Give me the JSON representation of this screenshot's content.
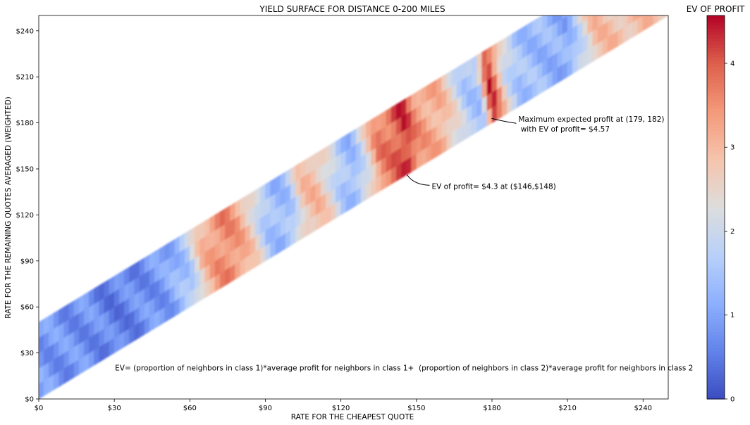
{
  "chart_data": {
    "type": "heatmap",
    "title": "YIELD SURFACE FOR DISTANCE 0-200 MILES",
    "xlabel": "RATE FOR THE CHEAPEST QUOTE",
    "ylabel": "RATE FOR THE REMAINING QUOTES AVERAGED (WEIGHTED)",
    "xlim": [
      0,
      250
    ],
    "ylim": [
      0,
      250
    ],
    "x_ticks": [
      0,
      30,
      60,
      90,
      120,
      150,
      180,
      210,
      240
    ],
    "y_ticks": [
      0,
      30,
      60,
      90,
      120,
      150,
      180,
      210,
      240
    ],
    "x_tick_labels": [
      "$0",
      "$30",
      "$60",
      "$90",
      "$120",
      "$150",
      "$180",
      "$210",
      "$240"
    ],
    "y_tick_labels": [
      "$0",
      "$30",
      "$60",
      "$90",
      "$120",
      "$150",
      "$180",
      "$210",
      "$240"
    ],
    "grid": false,
    "colormap": "coolwarm",
    "colorbar": {
      "title": "EV OF PROFIT",
      "range": [
        0,
        4.57
      ],
      "ticks": [
        0,
        1,
        2,
        3,
        4
      ],
      "tick_labels": [
        "0",
        "1",
        "2",
        "3",
        "4"
      ]
    },
    "band": {
      "description_shape": "diagonal band where y ranges from x to x+50",
      "y_min_offset": 0,
      "y_max_offset": 50
    },
    "surface_profile": {
      "x": [
        0,
        10,
        20,
        30,
        40,
        50,
        60,
        65,
        70,
        75,
        80,
        85,
        90,
        95,
        100,
        105,
        110,
        115,
        120,
        125,
        130,
        135,
        140,
        146,
        150,
        155,
        160,
        165,
        170,
        175,
        179,
        185,
        190,
        200,
        210,
        220,
        230,
        240,
        250
      ],
      "ev": [
        0.9,
        0.8,
        0.75,
        0.55,
        0.7,
        0.9,
        1.6,
        2.9,
        3.4,
        3.6,
        3.3,
        2.6,
        1.6,
        1.3,
        1.5,
        2.8,
        3.0,
        2.4,
        1.6,
        1.3,
        2.2,
        3.6,
        3.8,
        4.3,
        3.5,
        3.2,
        3.1,
        2.4,
        1.6,
        1.5,
        4.57,
        2.2,
        1.5,
        1.3,
        1.1,
        2.9,
        2.9,
        2.9,
        2.9
      ]
    },
    "annotations": [
      {
        "text": "Maximum expected profit at (179, 182)",
        "text2": " with EV of profit= $4.57",
        "x": 179,
        "y": 182,
        "ev": 4.57
      },
      {
        "text": "EV of profit= $4.3 at ($146,$148)",
        "x": 146,
        "y": 148,
        "ev": 4.3
      },
      {
        "text": "EV= (proportion of neighbors in class 1)*average profit for neighbors in class 1+  (proportion of neighbors in class 2)*average profit for neighbors in class 2"
      }
    ]
  }
}
